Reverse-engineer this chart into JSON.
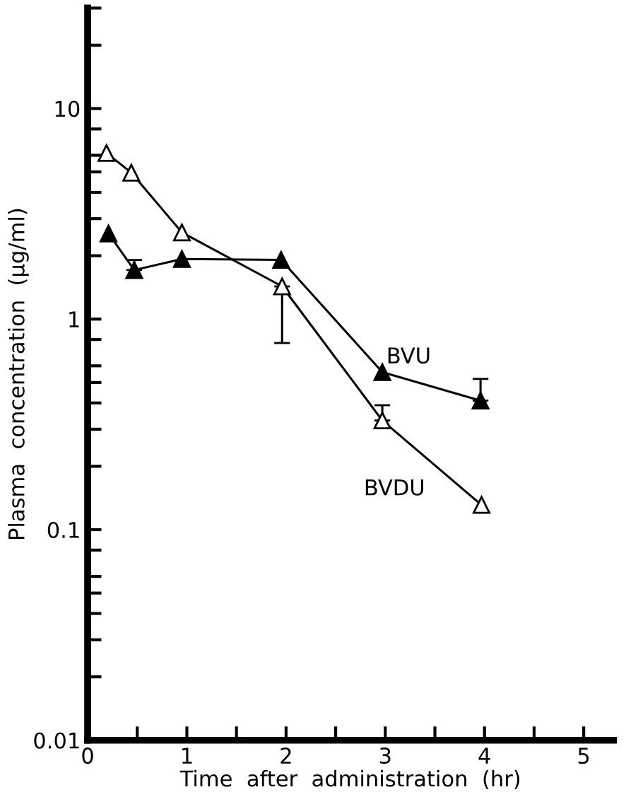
{
  "chart_data": {
    "type": "line",
    "xlabel": "Time  after  administration  (hr)",
    "ylabel": "Plasma  concentration  (µg/ml)",
    "log": "y",
    "xlim": [
      0,
      5.3
    ],
    "xticks": [
      0,
      {
        "value": 0.5,
        "label": null
      },
      1,
      {
        "value": 1.5,
        "label": null
      },
      2,
      {
        "value": 2.5,
        "label": null
      },
      3,
      {
        "value": 3.5,
        "label": null
      },
      4,
      {
        "value": 4.5,
        "label": null
      },
      5
    ],
    "ylim": [
      0.01,
      30
    ],
    "yticks": [
      0.01,
      {
        "value": 0.02,
        "label": null
      },
      {
        "value": 0.03,
        "label": null
      },
      {
        "value": 0.04,
        "label": null
      },
      {
        "value": 0.05,
        "label": null
      },
      {
        "value": 0.06,
        "label": null
      },
      {
        "value": 0.08,
        "label": null
      },
      0.1,
      {
        "value": 0.2,
        "label": null
      },
      {
        "value": 0.3,
        "label": null
      },
      {
        "value": 0.4,
        "label": null
      },
      {
        "value": 0.5,
        "label": null
      },
      {
        "value": 0.6,
        "label": null
      },
      {
        "value": 0.8,
        "label": null
      },
      1,
      {
        "value": 2,
        "label": null
      },
      {
        "value": 3,
        "label": null
      },
      {
        "value": 4,
        "label": null
      },
      {
        "value": 5,
        "label": null
      },
      {
        "value": 6,
        "label": null
      },
      {
        "value": 8,
        "label": null
      },
      10,
      {
        "value": 20,
        "label": null
      },
      {
        "value": 30,
        "label": null
      }
    ],
    "marker": "triangle",
    "grid": false,
    "legend": false,
    "series": [
      {
        "name": "BVU",
        "color": "#000000",
        "x": [
          0.21,
          0.47,
          0.95,
          1.95,
          2.97,
          3.96
        ],
        "values": [
          2.55,
          1.71,
          1.93,
          1.91,
          0.56,
          0.41
        ],
        "errors": [
          null,
          [
            1.71,
            1.91
          ],
          null,
          null,
          null,
          [
            0.41,
            0.52
          ]
        ]
      },
      {
        "name": "BVDU",
        "color": "#000000",
        "x": [
          0.19,
          0.44,
          0.95,
          1.96,
          2.97,
          3.97
        ],
        "values": [
          6.15,
          4.96,
          2.58,
          1.43,
          0.33,
          0.131
        ],
        "errors": [
          null,
          null,
          null,
          [
            0.77,
            1.43
          ],
          [
            0.33,
            0.39
          ],
          null
        ]
      }
    ]
  }
}
